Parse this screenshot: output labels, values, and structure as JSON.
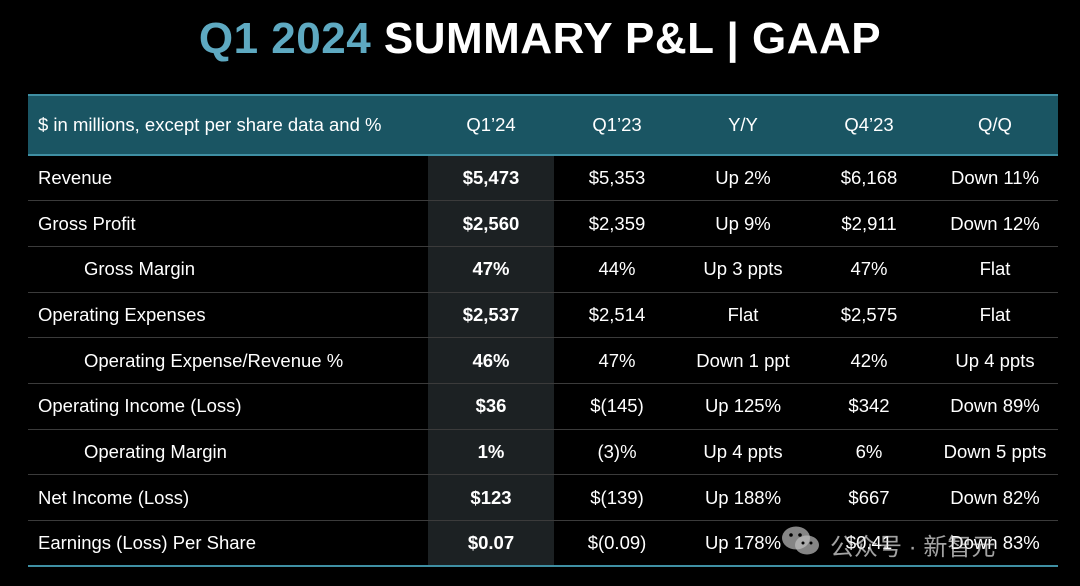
{
  "title": {
    "part1": "Q1 2024",
    "part2": "SUMMARY P&L  |  GAAP"
  },
  "columns": [
    "$ in millions, except per share data and %",
    "Q1’24",
    "Q1’23",
    "Y/Y",
    "Q4’23",
    "Q/Q"
  ],
  "rows": [
    {
      "label": "Revenue",
      "q124": "$5,473",
      "q123": "$5,353",
      "yy": "Up 2%",
      "q423": "$6,168",
      "qq": "Down 11%"
    },
    {
      "label": "Gross Profit",
      "q124": "$2,560",
      "q123": "$2,359",
      "yy": "Up 9%",
      "q423": "$2,911",
      "qq": "Down 12%"
    },
    {
      "label": "Gross Margin",
      "q124": "47%",
      "q123": "44%",
      "yy": "Up 3 ppts",
      "q423": "47%",
      "qq": "Flat"
    },
    {
      "label": "Operating Expenses",
      "q124": "$2,537",
      "q123": "$2,514",
      "yy": "Flat",
      "q423": "$2,575",
      "qq": "Flat"
    },
    {
      "label": "Operating Expense/Revenue %",
      "q124": "46%",
      "q123": "47%",
      "yy": "Down 1 ppt",
      "q423": "42%",
      "qq": "Up 4 ppts"
    },
    {
      "label": "Operating Income (Loss)",
      "q124": "$36",
      "q123": "$(145)",
      "yy": "Up 125%",
      "q423": "$342",
      "qq": "Down 89%"
    },
    {
      "label": "Operating Margin",
      "q124": "1%",
      "q123": "(3)%",
      "yy": "Up 4 ppts",
      "q423": "6%",
      "qq": "Down 5 ppts"
    },
    {
      "label": "Net Income (Loss)",
      "q124": "$123",
      "q123": "$(139)",
      "yy": "Up 188%",
      "q423": "$667",
      "qq": "Down 82%"
    },
    {
      "label": "Earnings (Loss) Per Share",
      "q124": "$0.07",
      "q123": "$(0.09)",
      "yy": "Up 178%",
      "q423": "$0.41",
      "qq": "Down 83%"
    }
  ],
  "watermark": {
    "icon": "wechat-icon",
    "text": "公众号 · 新智元"
  },
  "colors": {
    "accent": "#5ea9c1",
    "header_bg": "#1a5563",
    "highlight_col": "#1c2123"
  }
}
